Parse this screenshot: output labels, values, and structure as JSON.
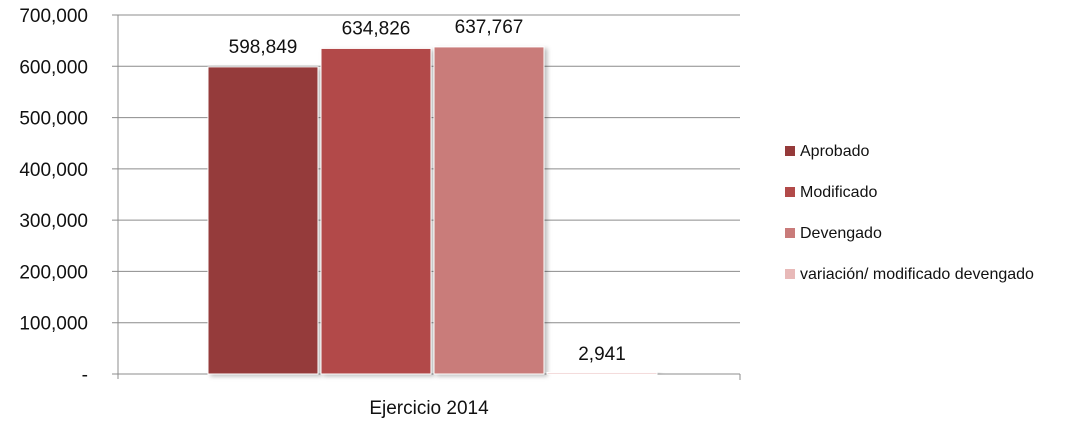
{
  "chart_data": {
    "type": "bar",
    "categories": [
      "Ejercicio 2014"
    ],
    "series": [
      {
        "name": "Aprobado",
        "values": [
          598849
        ],
        "label": "598,849",
        "color": "#953a3a"
      },
      {
        "name": "Modificado",
        "values": [
          634826
        ],
        "label": "634,826",
        "color": "#b24a49"
      },
      {
        "name": "Devengado",
        "values": [
          637767
        ],
        "label": "637,767",
        "color": "#c97b7a"
      },
      {
        "name": "variación/ modificado devengado",
        "values": [
          2941
        ],
        "label": "2,941",
        "color": "#e8b9b8"
      }
    ],
    "y_ticks": [
      {
        "value": 0,
        "label": "-"
      },
      {
        "value": 100000,
        "label": "100,000"
      },
      {
        "value": 200000,
        "label": "200,000"
      },
      {
        "value": 300000,
        "label": "300,000"
      },
      {
        "value": 400000,
        "label": "400,000"
      },
      {
        "value": 500000,
        "label": "500,000"
      },
      {
        "value": 600000,
        "label": "600,000"
      },
      {
        "value": 700000,
        "label": "700,000"
      }
    ],
    "ylim": [
      0,
      700000
    ],
    "grid": true,
    "legend_position": "right"
  }
}
